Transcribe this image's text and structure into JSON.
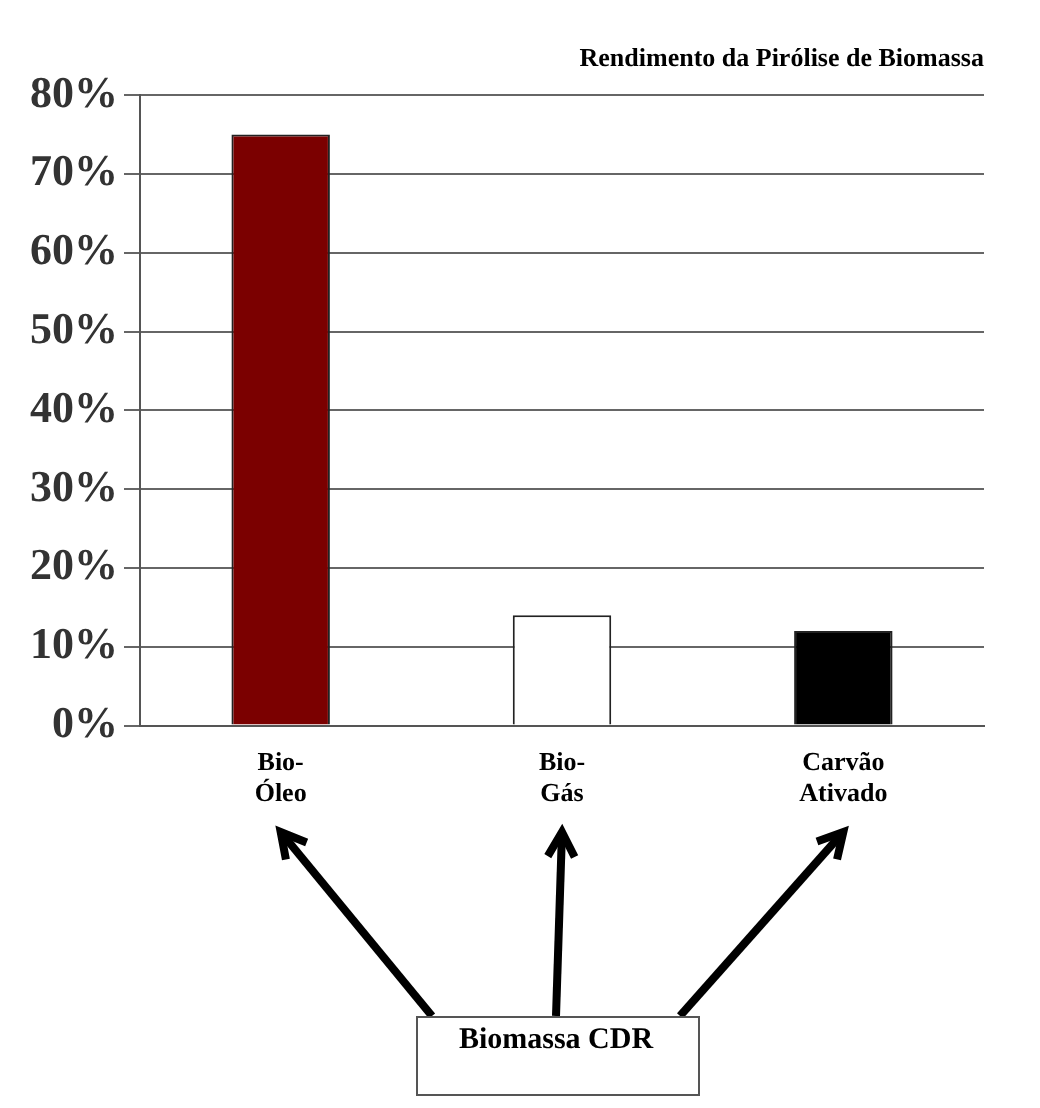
{
  "chart_data": {
    "type": "bar",
    "title": "Rendimento da Pirólise de Biomassa",
    "categories": [
      "Bio-Óleo",
      "Bio-Gás",
      "Carvão Ativado"
    ],
    "values": [
      75,
      14,
      12
    ],
    "colors": [
      "#7b0000",
      "#ffffff",
      "#000000"
    ],
    "ylim": [
      0,
      80
    ],
    "yticks": [
      {
        "value": 0,
        "label": "0%"
      },
      {
        "value": 10,
        "label": "10%"
      },
      {
        "value": 20,
        "label": "20%"
      },
      {
        "value": 30,
        "label": "30%"
      },
      {
        "value": 40,
        "label": "40%"
      },
      {
        "value": 50,
        "label": "50%"
      },
      {
        "value": 60,
        "label": "60%"
      },
      {
        "value": 70,
        "label": "70%"
      },
      {
        "value": 80,
        "label": "80%"
      }
    ],
    "grid": "y",
    "annotations": [
      "Biomassa CDR"
    ]
  }
}
